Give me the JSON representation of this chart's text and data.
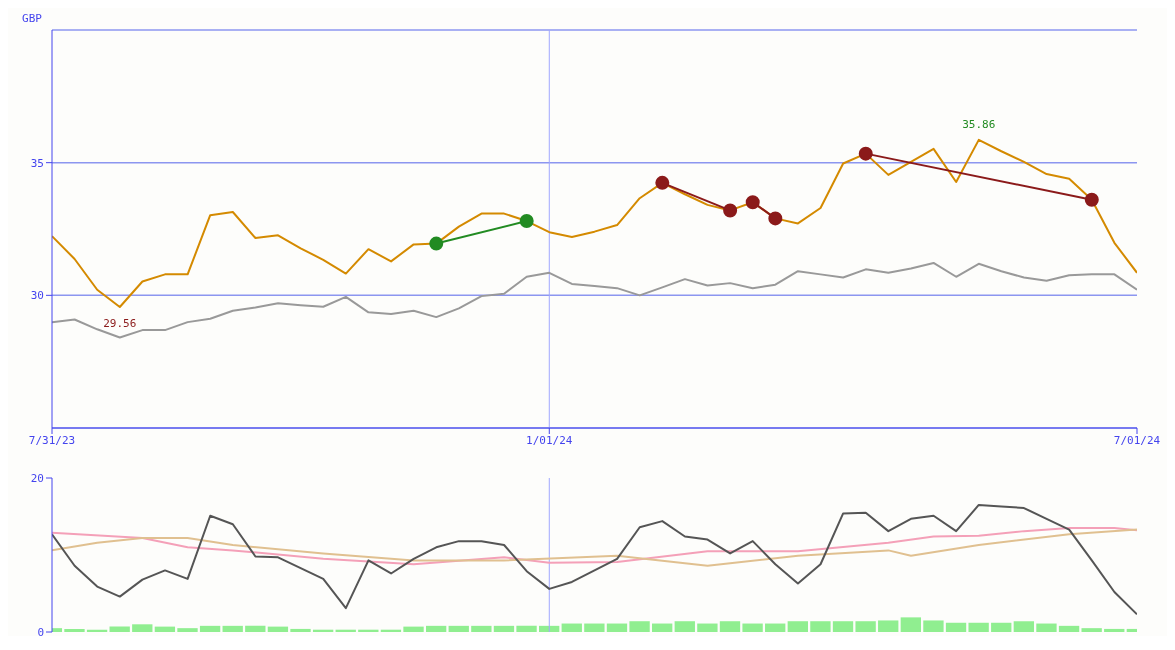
{
  "chart_data": [
    {
      "type": "line",
      "ylabel": "GBP",
      "x": [
        "2023-07-31",
        "2023-08-07",
        "2023-08-14",
        "2023-08-21",
        "2023-08-28",
        "2023-09-04",
        "2023-09-11",
        "2023-09-18",
        "2023-09-25",
        "2023-10-02",
        "2023-10-09",
        "2023-10-16",
        "2023-10-23",
        "2023-10-30",
        "2023-11-06",
        "2023-11-13",
        "2023-11-20",
        "2023-11-27",
        "2023-12-04",
        "2023-12-11",
        "2023-12-18",
        "2023-12-25",
        "2024-01-01",
        "2024-01-08",
        "2024-01-15",
        "2024-01-22",
        "2024-01-29",
        "2024-02-05",
        "2024-02-12",
        "2024-02-19",
        "2024-02-26",
        "2024-03-04",
        "2024-03-11",
        "2024-03-18",
        "2024-03-25",
        "2024-04-01",
        "2024-04-08",
        "2024-04-15",
        "2024-04-22",
        "2024-04-29",
        "2024-05-06",
        "2024-05-13",
        "2024-05-20",
        "2024-05-27",
        "2024-06-03",
        "2024-06-10",
        "2024-06-17",
        "2024-06-24",
        "2024-07-01"
      ],
      "series": [
        {
          "color": "#d48a00",
          "values": [
            32.23,
            31.37,
            30.21,
            29.56,
            30.52,
            30.79,
            30.79,
            33.02,
            33.14,
            32.16,
            32.26,
            31.77,
            31.34,
            30.82,
            31.74,
            31.28,
            31.92,
            31.95,
            32.59,
            33.08,
            33.08,
            32.8,
            32.38,
            32.2,
            32.4,
            32.65,
            33.66,
            34.24,
            33.81,
            33.41,
            33.2,
            33.51,
            32.9,
            32.71,
            33.29,
            34.97,
            35.34,
            34.54,
            35.03,
            35.52,
            34.27,
            35.86,
            35.43,
            35.03,
            34.57,
            34.39,
            33.6,
            31.98,
            30.85
          ]
        },
        {
          "color": "#999999",
          "values": [
            28.99,
            29.09,
            28.72,
            28.41,
            28.69,
            28.69,
            28.99,
            29.12,
            29.42,
            29.54,
            29.7,
            29.63,
            29.57,
            29.94,
            29.36,
            29.3,
            29.42,
            29.18,
            29.51,
            29.97,
            30.06,
            30.7,
            30.85,
            30.43,
            30.35,
            30.27,
            30.0,
            30.3,
            30.61,
            30.37,
            30.46,
            30.27,
            30.4,
            30.91,
            30.79,
            30.67,
            30.98,
            30.85,
            31.01,
            31.22,
            30.7,
            31.19,
            30.91,
            30.67,
            30.55,
            30.76,
            30.79,
            30.79,
            30.21
          ]
        },
        {
          "color": "#228b22",
          "marker": "circle",
          "x": [
            "2023-11-27",
            "2023-12-25"
          ],
          "values": [
            31.95,
            32.8
          ]
        },
        {
          "color": "#8b1a1a",
          "marker": "circle",
          "x": [
            "2024-02-05",
            "2024-02-26"
          ],
          "values": [
            34.24,
            33.2
          ]
        },
        {
          "color": "#8b1a1a",
          "marker": "circle",
          "x": [
            "2024-03-04",
            "2024-03-11"
          ],
          "values": [
            33.51,
            32.9
          ]
        },
        {
          "color": "#8b1a1a",
          "marker": "circle",
          "x": [
            "2024-04-08",
            "2024-06-17"
          ],
          "values": [
            35.34,
            33.6
          ]
        }
      ],
      "xlim": [
        "2023-07-31",
        "2024-07-01"
      ],
      "xticks": [
        {
          "value": "2023-07-31",
          "label": "7/31/23"
        },
        {
          "value": "2024-01-01",
          "label": "1/01/24"
        },
        {
          "value": "2024-07-01",
          "label": "7/01/24"
        }
      ],
      "ylim": [
        25,
        40
      ],
      "yticks": [
        30,
        35
      ],
      "grid": "y",
      "ref_lines": [
        {
          "axis": "x",
          "value": "2024-01-01",
          "color": "#a0a8ff"
        }
      ],
      "annotations": [
        {
          "text": "29.56",
          "x": "2023-08-21",
          "y": 29.56
        },
        {
          "text": "35.86",
          "x": "2024-05-13",
          "y": 35.86
        }
      ]
    },
    {
      "type": "line",
      "tick_labels": "y",
      "x": [
        "2023-07-31",
        "2023-08-07",
        "2023-08-14",
        "2023-08-21",
        "2023-08-28",
        "2023-09-04",
        "2023-09-11",
        "2023-09-18",
        "2023-09-25",
        "2023-10-02",
        "2023-10-09",
        "2023-10-16",
        "2023-10-23",
        "2023-10-30",
        "2023-11-06",
        "2023-11-13",
        "2023-11-20",
        "2023-11-27",
        "2023-12-04",
        "2023-12-11",
        "2023-12-18",
        "2023-12-25",
        "2024-01-01",
        "2024-01-08",
        "2024-01-15",
        "2024-01-22",
        "2024-01-29",
        "2024-02-05",
        "2024-02-12",
        "2024-02-19",
        "2024-02-26",
        "2024-03-04",
        "2024-03-11",
        "2024-03-18",
        "2024-03-25",
        "2024-04-01",
        "2024-04-08",
        "2024-04-15",
        "2024-04-22",
        "2024-04-29",
        "2024-05-06",
        "2024-05-13",
        "2024-05-20",
        "2024-05-27",
        "2024-06-03",
        "2024-06-10",
        "2024-06-17",
        "2024-06-24",
        "2024-07-01"
      ],
      "series": [
        {
          "type": "bar",
          "color": "#90ee90",
          "values": [
            0.5,
            0.4,
            0.3,
            0.7,
            1.0,
            0.7,
            0.5,
            0.8,
            0.8,
            0.8,
            0.7,
            0.4,
            0.3,
            0.3,
            0.3,
            0.3,
            0.7,
            0.8,
            0.8,
            0.8,
            0.8,
            0.8,
            0.8,
            1.1,
            1.1,
            1.1,
            1.4,
            1.1,
            1.4,
            1.1,
            1.4,
            1.1,
            1.1,
            1.4,
            1.4,
            1.4,
            1.4,
            1.5,
            1.9,
            1.5,
            1.2,
            1.2,
            1.2,
            1.4,
            1.1,
            0.8,
            0.5,
            0.4,
            0.4
          ]
        },
        {
          "color": "#f4a0b8",
          "x": [
            "2023-07-31",
            "2023-08-28",
            "2023-09-11",
            "2023-09-25",
            "2023-10-23",
            "2023-11-20",
            "2023-12-18",
            "2024-01-01",
            "2024-01-22",
            "2024-02-19",
            "2024-03-18",
            "2024-04-15",
            "2024-04-29",
            "2024-05-13",
            "2024-05-27",
            "2024-06-10",
            "2024-06-24",
            "2024-07-01"
          ],
          "values": [
            12.9,
            12.2,
            11.0,
            10.6,
            9.5,
            8.8,
            9.7,
            9.0,
            9.1,
            10.5,
            10.5,
            11.6,
            12.4,
            12.5,
            13.1,
            13.5,
            13.5,
            13.2
          ]
        },
        {
          "color": "#e0c090",
          "x": [
            "2023-07-31",
            "2023-08-14",
            "2023-08-28",
            "2023-09-11",
            "2023-09-25",
            "2023-10-23",
            "2023-11-20",
            "2023-12-18",
            "2024-01-22",
            "2024-02-19",
            "2024-03-18",
            "2024-04-15",
            "2024-04-22",
            "2024-05-13",
            "2024-06-10",
            "2024-07-01"
          ],
          "values": [
            10.6,
            11.6,
            12.2,
            12.2,
            11.3,
            10.2,
            9.3,
            9.3,
            9.9,
            8.6,
            9.9,
            10.6,
            9.9,
            11.3,
            12.7,
            13.3
          ]
        },
        {
          "color": "#555555",
          "values": [
            12.7,
            8.6,
            5.9,
            4.6,
            6.8,
            8.0,
            6.9,
            15.1,
            14.0,
            9.8,
            9.7,
            8.3,
            6.9,
            3.1,
            9.3,
            7.6,
            9.5,
            11.0,
            11.8,
            11.8,
            11.3,
            7.9,
            5.6,
            6.5,
            8.0,
            9.5,
            13.6,
            14.4,
            12.4,
            12.0,
            10.2,
            11.8,
            8.8,
            6.3,
            8.8,
            15.4,
            15.5,
            13.1,
            14.7,
            15.1,
            13.1,
            16.5,
            16.3,
            16.1,
            14.7,
            13.3,
            9.3,
            5.2,
            2.3
          ]
        }
      ],
      "xlim": [
        "2023-07-31",
        "2024-07-01"
      ],
      "ylim": [
        0,
        20
      ],
      "yticks": [
        0,
        20
      ],
      "ref_lines": [
        {
          "axis": "x",
          "value": "2024-01-01",
          "color": "#a0a8ff"
        }
      ]
    }
  ]
}
